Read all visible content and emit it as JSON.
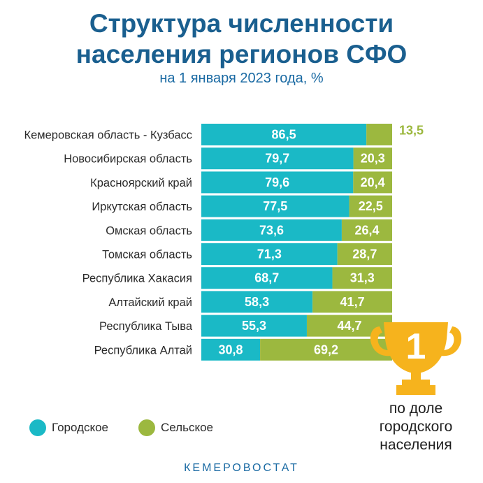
{
  "title_line1": "Структура численности",
  "title_line2": "населения регионов СФО",
  "subtitle": "на 1 января 2023 года, %",
  "colors": {
    "urban": "#1ab9c6",
    "rural": "#9cb83f",
    "title": "#1a5f8f",
    "gold": "#f6b31d"
  },
  "legend": {
    "urban": "Городское",
    "rural": "Сельское"
  },
  "trophy": {
    "number": "1",
    "caption": [
      "по доле",
      "городского",
      "населения"
    ]
  },
  "footer": "КЕМЕРОВОСТАТ",
  "chart_data": {
    "type": "bar",
    "orientation": "horizontal",
    "stacked": true,
    "categories": [
      "Кемеровская область - Кузбасс",
      "Новосибирская область",
      "Красноярский край",
      "Иркутская область",
      "Омская область",
      "Томская область",
      "Республика Хакасия",
      "Алтайский край",
      "Республика Тыва",
      "Республика Алтай"
    ],
    "series": [
      {
        "name": "Городское",
        "values": [
          86.5,
          79.7,
          79.6,
          77.5,
          73.6,
          71.3,
          68.7,
          58.3,
          55.3,
          30.8
        ]
      },
      {
        "name": "Сельское",
        "values": [
          13.5,
          20.3,
          20.4,
          22.5,
          26.4,
          28.7,
          31.3,
          41.7,
          44.7,
          69.2
        ]
      }
    ],
    "value_labels": {
      "urban": [
        "86,5",
        "79,7",
        "79,6",
        "77,5",
        "73,6",
        "71,3",
        "68,7",
        "58,3",
        "55,3",
        "30,8"
      ],
      "rural": [
        "13,5",
        "20,3",
        "20,4",
        "22,5",
        "26,4",
        "28,7",
        "31,3",
        "41,7",
        "44,7",
        "69,2"
      ]
    },
    "xlim": [
      0,
      100
    ],
    "legend_position": "bottom-left",
    "grid": false
  }
}
